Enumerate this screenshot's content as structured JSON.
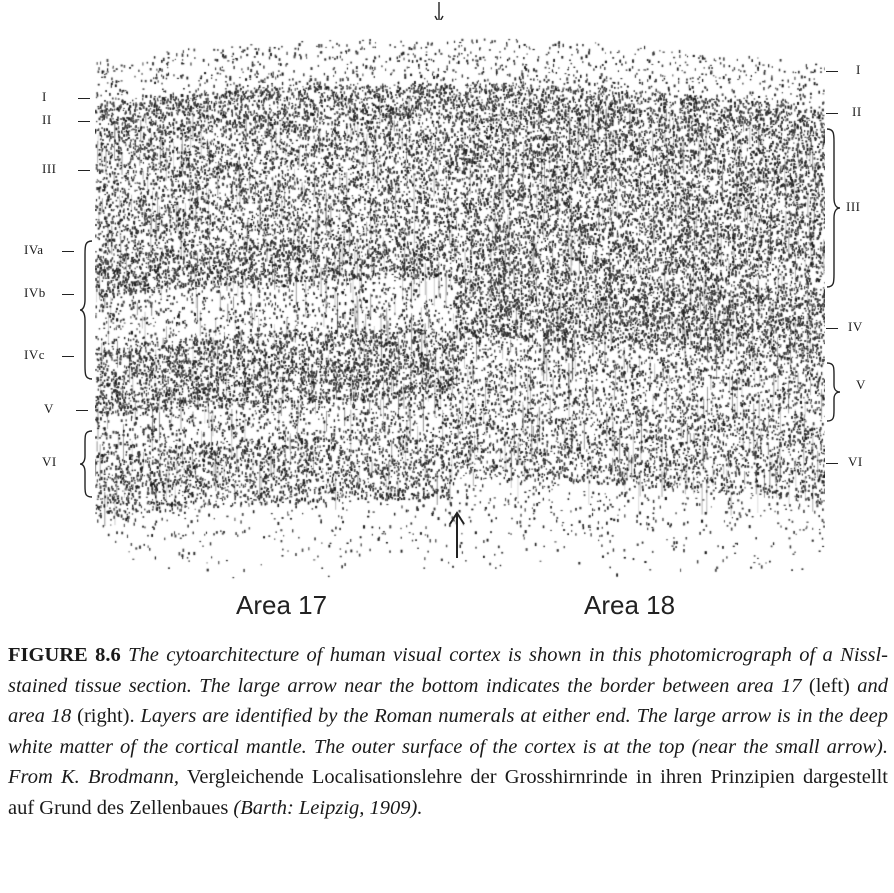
{
  "labels_left": [
    "I",
    "II",
    "III",
    "IVa",
    "IVb",
    "IVc",
    "V",
    "VI"
  ],
  "labels_right": [
    "I",
    "II",
    "III",
    "IV",
    "V",
    "VI"
  ],
  "area_labels": {
    "left": "Area 17",
    "right": "Area 18"
  },
  "caption": {
    "fig_num": "FIGURE 8.6",
    "s1": "The cytoarchitecture of human visual cortex is shown in this photomicrograph of a Nissl-stained tissue section. The large arrow near the bottom indicates the border between area 17",
    "s2": "(left)",
    "s3": "and area 18",
    "s4": "(right).",
    "s5": "Layers are identified by the Roman numerals at either end. The large arrow is in the deep white matter of the cortical mantle. The outer surface of the cortex is at the top (near the small arrow). From K. Brodmann,",
    "s6": "Vergleichende Localisationslehre der Grosshirnrinde in ihren Prinzipien dargestellt auf Grund des Zellenbaues",
    "s7": "(Barth: Leipzig, 1909)."
  }
}
